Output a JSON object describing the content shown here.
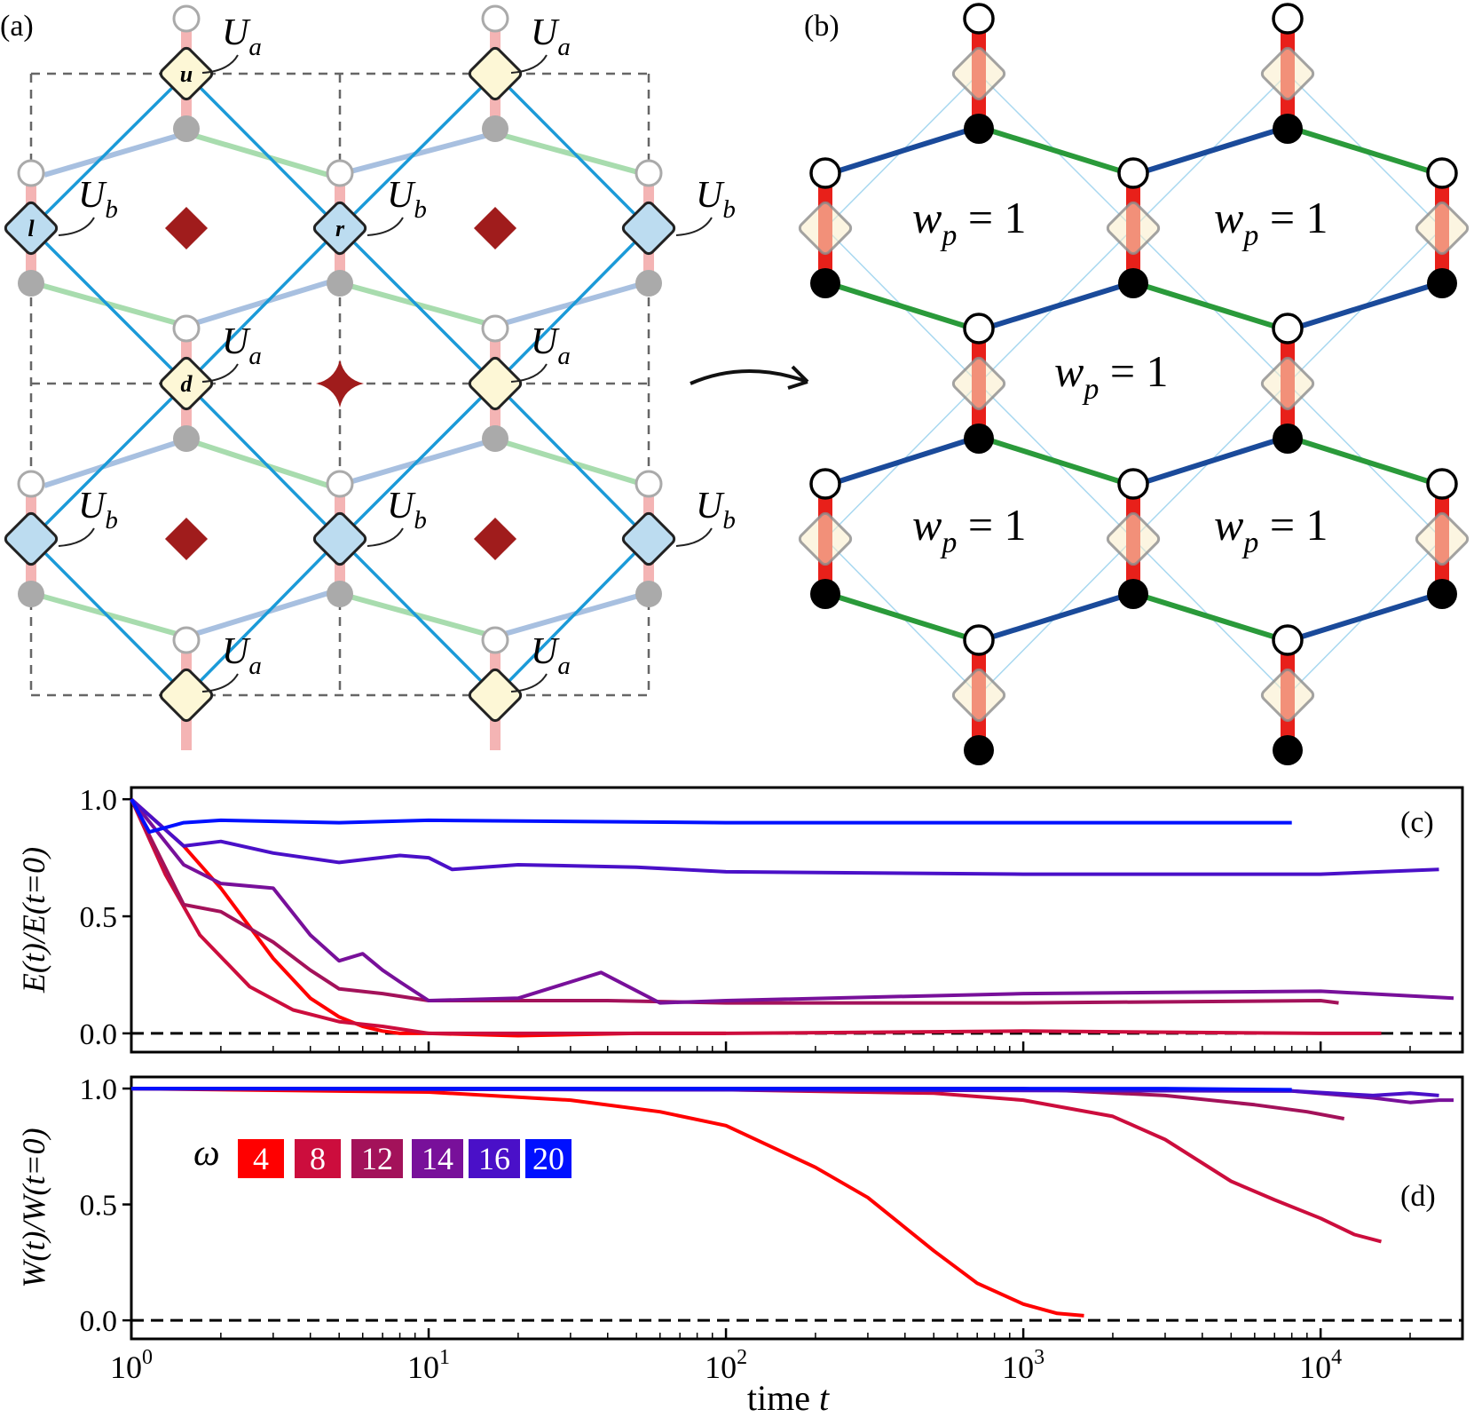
{
  "panels": {
    "a": {
      "tag": "(a)",
      "Ua_label": {
        "main": "U",
        "sub": "a"
      },
      "Ub_label": {
        "main": "U",
        "sub": "b"
      },
      "site_letters": {
        "u": "u",
        "l": "l",
        "r": "r",
        "d": "d"
      }
    },
    "b": {
      "tag": "(b)",
      "plaquette_label": {
        "main": "w",
        "sub": "p",
        "rest": " = 1"
      }
    }
  },
  "colors": {
    "red": "#ff0000",
    "dark_red": "#a01c1c",
    "blue_bond": "#1b9ad8",
    "light_blue": "#a8c0e0",
    "light_green": "#a8dcae",
    "navy": "#1a4a9a",
    "green": "#2a9a3a",
    "site_u": "#fdf7d6",
    "site_l": "#bcdcf0",
    "pink": "#f4b4b4"
  },
  "chart_data": [
    {
      "panel": "(c)",
      "type": "line",
      "ylabel": "E(t)/E(t=0)",
      "xlabel": "",
      "xscale": "log",
      "xlim": [
        1,
        30000
      ],
      "ylim": [
        -0.08,
        1.05
      ],
      "yticks": [
        "0.0",
        "0.5",
        "1.0"
      ],
      "hline": 0,
      "series": [
        {
          "name": "4",
          "color": "#ff0000",
          "points": [
            [
              1,
              1.0
            ],
            [
              1.5,
              0.8
            ],
            [
              2,
              0.62
            ],
            [
              3,
              0.32
            ],
            [
              4,
              0.15
            ],
            [
              5,
              0.07
            ],
            [
              6,
              0.03
            ],
            [
              7,
              0.01
            ],
            [
              8,
              0.0
            ],
            [
              10,
              0.0
            ],
            [
              20,
              -0.01
            ],
            [
              50,
              0.0
            ],
            [
              100,
              0.0
            ]
          ]
        },
        {
          "name": "8",
          "color": "#cc0d3d",
          "points": [
            [
              1,
              1.0
            ],
            [
              1.3,
              0.68
            ],
            [
              1.7,
              0.42
            ],
            [
              2.5,
              0.2
            ],
            [
              3.5,
              0.1
            ],
            [
              5,
              0.05
            ],
            [
              7,
              0.03
            ],
            [
              10,
              0.0
            ],
            [
              20,
              0.0
            ],
            [
              100,
              0.0
            ],
            [
              1000,
              0.01
            ],
            [
              10000,
              0.0
            ],
            [
              16000,
              0.0
            ]
          ]
        },
        {
          "name": "12",
          "color": "#a3125a",
          "points": [
            [
              1,
              1.0
            ],
            [
              1.5,
              0.55
            ],
            [
              2,
              0.52
            ],
            [
              3,
              0.39
            ],
            [
              4,
              0.27
            ],
            [
              5,
              0.19
            ],
            [
              7,
              0.17
            ],
            [
              10,
              0.14
            ],
            [
              20,
              0.14
            ],
            [
              40,
              0.14
            ],
            [
              100,
              0.13
            ],
            [
              1000,
              0.13
            ],
            [
              10000,
              0.14
            ],
            [
              11500,
              0.13
            ]
          ]
        },
        {
          "name": "14",
          "color": "#78109a",
          "points": [
            [
              1,
              1.0
            ],
            [
              1.5,
              0.72
            ],
            [
              2,
              0.64
            ],
            [
              3,
              0.62
            ],
            [
              4,
              0.42
            ],
            [
              5,
              0.31
            ],
            [
              6,
              0.34
            ],
            [
              7,
              0.27
            ],
            [
              8,
              0.22
            ],
            [
              10,
              0.14
            ],
            [
              20,
              0.15
            ],
            [
              38,
              0.26
            ],
            [
              60,
              0.13
            ],
            [
              100,
              0.14
            ],
            [
              1000,
              0.17
            ],
            [
              10000,
              0.18
            ],
            [
              28000,
              0.15
            ]
          ]
        },
        {
          "name": "16",
          "color": "#4a10c8",
          "points": [
            [
              1,
              1.0
            ],
            [
              1.5,
              0.8
            ],
            [
              2,
              0.82
            ],
            [
              3,
              0.77
            ],
            [
              5,
              0.73
            ],
            [
              8,
              0.76
            ],
            [
              10,
              0.75
            ],
            [
              12,
              0.7
            ],
            [
              20,
              0.72
            ],
            [
              50,
              0.71
            ],
            [
              100,
              0.69
            ],
            [
              1000,
              0.68
            ],
            [
              10000,
              0.68
            ],
            [
              25000,
              0.7
            ]
          ]
        },
        {
          "name": "20",
          "color": "#0010ff",
          "points": [
            [
              1,
              1.0
            ],
            [
              1.15,
              0.86
            ],
            [
              1.5,
              0.9
            ],
            [
              2,
              0.91
            ],
            [
              5,
              0.9
            ],
            [
              10,
              0.91
            ],
            [
              100,
              0.9
            ],
            [
              1000,
              0.9
            ],
            [
              8000,
              0.9
            ]
          ]
        }
      ]
    },
    {
      "panel": "(d)",
      "type": "line",
      "ylabel": "W(t)/W(t=0)",
      "xlabel": "time t",
      "xscale": "log",
      "xlim": [
        1,
        30000
      ],
      "ylim": [
        -0.08,
        1.05
      ],
      "xticks": [
        {
          "value": 1,
          "base": "10",
          "exp": "0"
        },
        {
          "value": 10,
          "base": "10",
          "exp": "1"
        },
        {
          "value": 100,
          "base": "10",
          "exp": "2"
        },
        {
          "value": 1000,
          "base": "10",
          "exp": "3"
        },
        {
          "value": 10000,
          "base": "10",
          "exp": "4"
        }
      ],
      "yticks": [
        "0.0",
        "0.5",
        "1.0"
      ],
      "hline": 0,
      "series": [
        {
          "name": "4",
          "color": "#ff0000",
          "points": [
            [
              1,
              1.0
            ],
            [
              10,
              0.985
            ],
            [
              30,
              0.95
            ],
            [
              60,
              0.9
            ],
            [
              100,
              0.84
            ],
            [
              200,
              0.66
            ],
            [
              300,
              0.53
            ],
            [
              500,
              0.3
            ],
            [
              700,
              0.16
            ],
            [
              1000,
              0.07
            ],
            [
              1300,
              0.03
            ],
            [
              1600,
              0.02
            ]
          ]
        },
        {
          "name": "8",
          "color": "#cc0d3d",
          "points": [
            [
              1,
              1.0
            ],
            [
              100,
              0.995
            ],
            [
              500,
              0.98
            ],
            [
              1000,
              0.95
            ],
            [
              2000,
              0.88
            ],
            [
              3000,
              0.78
            ],
            [
              5000,
              0.6
            ],
            [
              7000,
              0.52
            ],
            [
              10000,
              0.44
            ],
            [
              13000,
              0.37
            ],
            [
              16000,
              0.34
            ]
          ]
        },
        {
          "name": "12",
          "color": "#a3125a",
          "points": [
            [
              1,
              1.0
            ],
            [
              1000,
              1.0
            ],
            [
              3000,
              0.97
            ],
            [
              6000,
              0.93
            ],
            [
              9000,
              0.9
            ],
            [
              12000,
              0.87
            ]
          ]
        },
        {
          "name": "14",
          "color": "#78109a",
          "points": [
            [
              1,
              1.0
            ],
            [
              8000,
              0.99
            ],
            [
              15000,
              0.96
            ],
            [
              20000,
              0.94
            ],
            [
              25000,
              0.95
            ],
            [
              28000,
              0.95
            ]
          ]
        },
        {
          "name": "16",
          "color": "#4a10c8",
          "points": [
            [
              1,
              1.0
            ],
            [
              8000,
              0.99
            ],
            [
              15000,
              0.97
            ],
            [
              20000,
              0.98
            ],
            [
              25000,
              0.97
            ]
          ]
        },
        {
          "name": "20",
          "color": "#0010ff",
          "points": [
            [
              1,
              1.0
            ],
            [
              3000,
              1.0
            ],
            [
              8000,
              0.995
            ]
          ]
        }
      ]
    }
  ],
  "legend": {
    "symbol": "ω",
    "entries": [
      "4",
      "8",
      "12",
      "14",
      "16",
      "20"
    ]
  },
  "tags": {
    "c": "(c)",
    "d": "(d)"
  }
}
